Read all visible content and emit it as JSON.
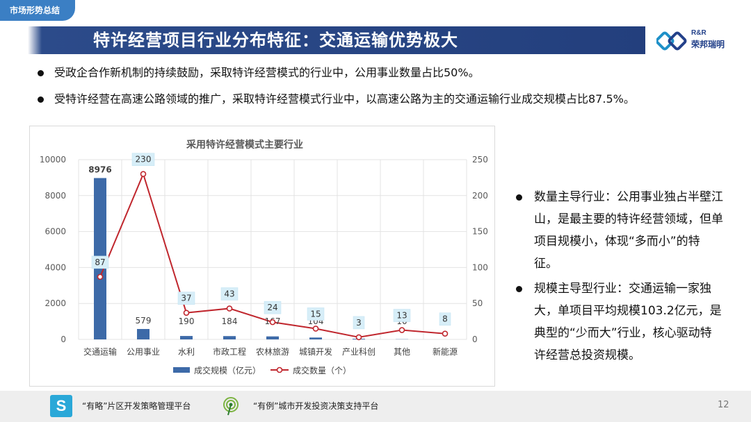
{
  "tag": "市场形势总结",
  "title": "特许经营项目行业分布特征：交通运输优势极大",
  "logo": {
    "latin": "R&R",
    "cn": "荣邦瑞明"
  },
  "bullets": [
    "受政企合作新机制的持续鼓励，采取特许经营模式的行业中，公用事业数量占比50%。",
    "受特许经营在高速公路领域的推广，采取特许经营模式行业中，以高速公路为主的交通运输行业成交规模占比87.5%。"
  ],
  "side_bullets": [
    "数量主导行业：公用事业独占半壁江山，是最主要的特许经营领域，但单项目规模小，体现“多而小”的特征。",
    "规模主导型行业：交通运输一家独大，单项目平均规模103.2亿元，是典型的“少而大”行业，核心驱动特许经营总投资规模。"
  ],
  "chart_data": {
    "type": "bar",
    "title": "采用特许经营模式主要行业",
    "categories": [
      "交通运输",
      "公用事业",
      "水利",
      "市政工程",
      "农林旅游",
      "城镇开发",
      "产业科创",
      "其他",
      "新能源"
    ],
    "series": [
      {
        "name": "成交规模（亿元）",
        "type": "bar",
        "axis": "left",
        "values": [
          8976,
          579,
          190,
          184,
          167,
          104,
          35,
          10,
          0
        ],
        "color": "#3d6aa8"
      },
      {
        "name": "成交数量（个）",
        "type": "line",
        "axis": "right",
        "values": [
          87,
          230,
          37,
          43,
          24,
          15,
          3,
          13,
          8
        ],
        "color": "#c0262d"
      }
    ],
    "y_left": {
      "ticks": [
        "0",
        "2000",
        "4000",
        "6000",
        "8000",
        "10000"
      ],
      "range": [
        0,
        10000
      ]
    },
    "y_right": {
      "ticks": [
        "0",
        "50",
        "100",
        "150",
        "200",
        "250"
      ],
      "range": [
        0,
        250
      ]
    },
    "grid": true,
    "legend": "bottom"
  },
  "footer": {
    "icon1_letter": "S",
    "text1": "“有略”片区开发策略管理平台",
    "text2": "“有例”城市开发投资决策支持平台",
    "page": "12"
  }
}
